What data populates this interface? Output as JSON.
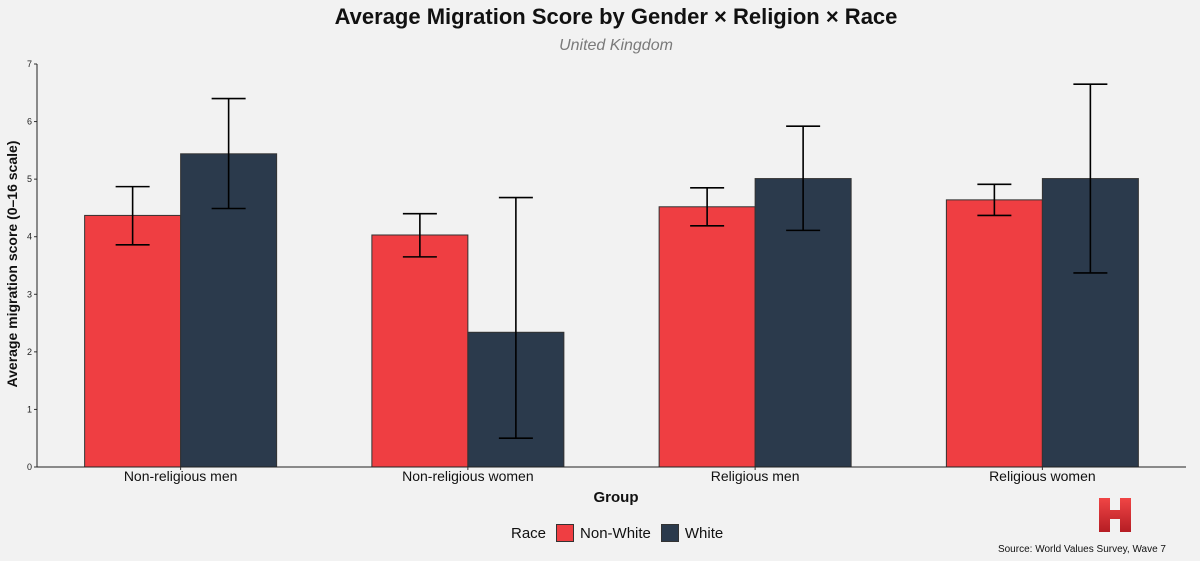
{
  "chart_data": {
    "type": "bar",
    "title": "Average Migration Score by Gender × Religion × Race",
    "subtitle": "United Kingdom",
    "xlabel": "Group",
    "ylabel": "Average migration score (0–16 scale)",
    "categories": [
      "Non-religious men",
      "Non-religious women",
      "Religious men",
      "Religious women"
    ],
    "ylim": [
      0,
      7
    ],
    "yticks": [
      "0",
      "1",
      "2",
      "3",
      "4",
      "5",
      "6",
      "7"
    ],
    "series": [
      {
        "name": "Non-White",
        "color": "#ef3e42",
        "values": [
          4.37,
          4.03,
          4.52,
          4.64
        ],
        "err_low": [
          3.86,
          3.65,
          4.19,
          4.37
        ],
        "err_high": [
          4.87,
          4.4,
          4.85,
          4.91
        ]
      },
      {
        "name": "White",
        "color": "#2b3a4c",
        "values": [
          5.44,
          2.34,
          5.01,
          5.01
        ],
        "err_low": [
          4.49,
          0.5,
          4.11,
          3.37
        ],
        "err_high": [
          6.4,
          4.68,
          5.92,
          6.65
        ]
      }
    ],
    "legend_title": "Race",
    "source": "Source: World Values Survey, Wave 7"
  }
}
